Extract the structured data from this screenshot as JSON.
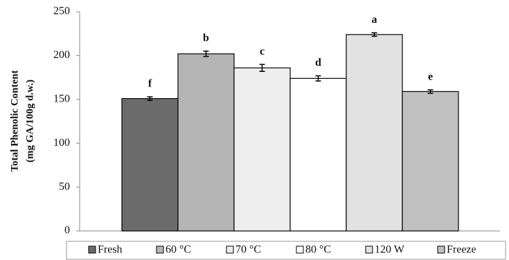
{
  "chart_data": {
    "type": "bar",
    "y_label": [
      "Total Phenolic Content",
      "(mg GA/100g d.w.)"
    ],
    "categories": [
      "Fresh",
      "60 °C",
      "70 °C",
      "80 °C",
      "120 W",
      "Freeze"
    ],
    "values": [
      151,
      202,
      186,
      174,
      224,
      159
    ],
    "errors": [
      2,
      3,
      4,
      3,
      2,
      2
    ],
    "annotations": [
      "f",
      "b",
      "c",
      "d",
      "a",
      "e"
    ],
    "colors": [
      "#6b6b6b",
      "#b5b5b5",
      "#eeeeee",
      "#ffffff",
      "#e2e2e2",
      "#c0c0c0"
    ],
    "ylim": [
      0,
      250
    ],
    "yticks": [
      0,
      50,
      100,
      150,
      200,
      250
    ],
    "legend": "bottom"
  }
}
